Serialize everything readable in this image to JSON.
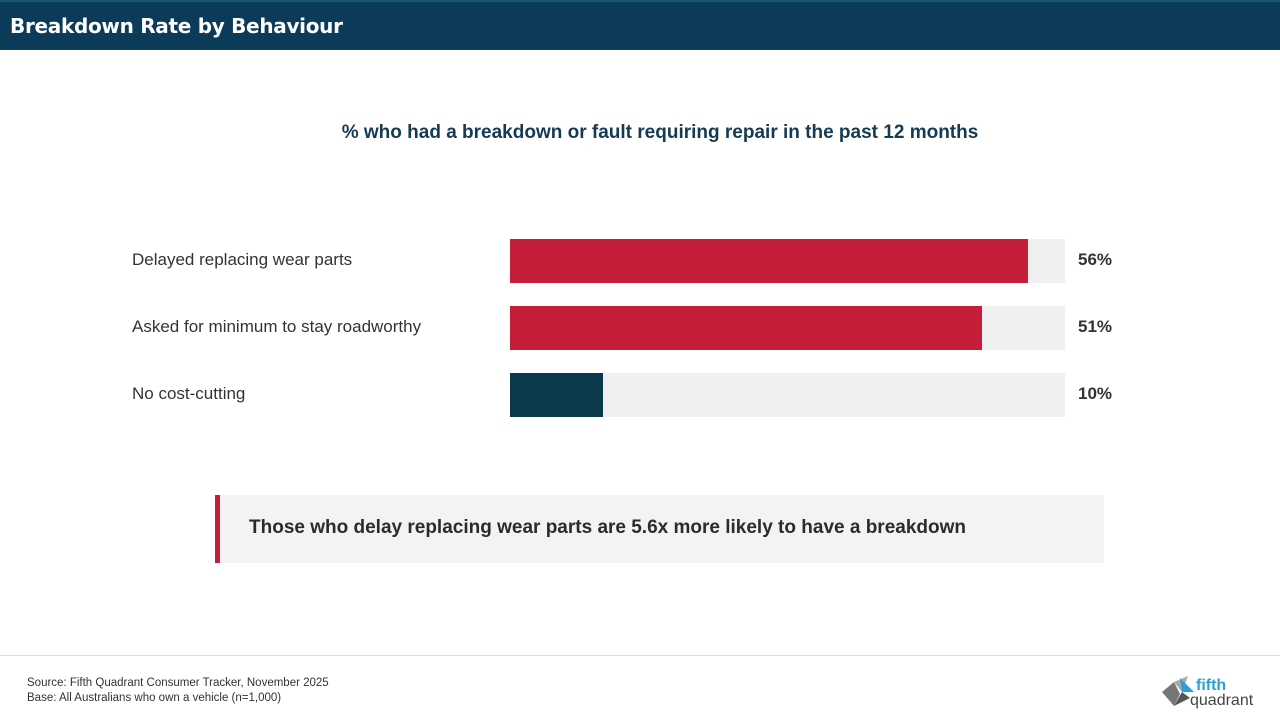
{
  "header": {
    "title": "Breakdown Rate by Behaviour"
  },
  "chart_data": {
    "type": "bar",
    "orientation": "horizontal",
    "title": "% who had a breakdown or fault requiring repair in the past 12 months",
    "categories": [
      "Delayed replacing wear parts",
      "Asked for minimum to stay roadworthy",
      "No cost-cutting"
    ],
    "values": [
      56,
      51,
      10
    ],
    "value_labels": [
      "56%",
      "51%",
      "10%"
    ],
    "xlim": [
      0,
      60
    ],
    "bar_colors": [
      "#c41e3a",
      "#c41e3a",
      "#0b3a4c"
    ],
    "track_color": "#efefef",
    "grid": false
  },
  "callout": {
    "text": "Those who delay replacing wear parts are 5.6x more likely to have a breakdown",
    "accent": "#c41e3a"
  },
  "footer": {
    "source": "Source: Fifth Quadrant Consumer Tracker, November 2025",
    "base": "Base: All Australians who own a vehicle (n=1,000)"
  },
  "logo": {
    "text": "fifth quadrant"
  }
}
